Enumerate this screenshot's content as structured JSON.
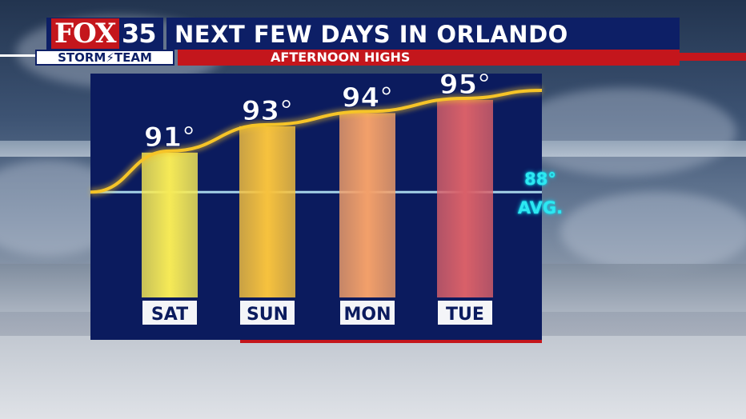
{
  "header": {
    "logo_fox": "FOX",
    "logo_number": "35",
    "storm_team": "STORM⚡TEAM",
    "title": "NEXT FEW DAYS IN ORLANDO",
    "subtitle": "AFTERNOON HIGHS"
  },
  "chart_data": {
    "type": "bar",
    "categories": [
      "SAT",
      "SUN",
      "MON",
      "TUE"
    ],
    "values": [
      91,
      93,
      94,
      95
    ],
    "value_labels": [
      "91°",
      "93°",
      "94°",
      "95°"
    ],
    "bar_colors": [
      "#f6ea57",
      "#f7c23e",
      "#f3a06a",
      "#d96069"
    ],
    "average": {
      "value": 88,
      "label_value": "88°",
      "label_text": "AVG."
    },
    "trend_line_color": "#f6c428",
    "average_line_color": "#bff3ff",
    "title": "AFTERNOON HIGHS",
    "ylim": [
      80,
      97
    ],
    "grid": false,
    "legend": "none"
  },
  "colors": {
    "panel": "#0b1b5e",
    "brand_red": "#c4161c",
    "brand_navy": "#0d1f66",
    "avg_text": "#2de8f2"
  }
}
